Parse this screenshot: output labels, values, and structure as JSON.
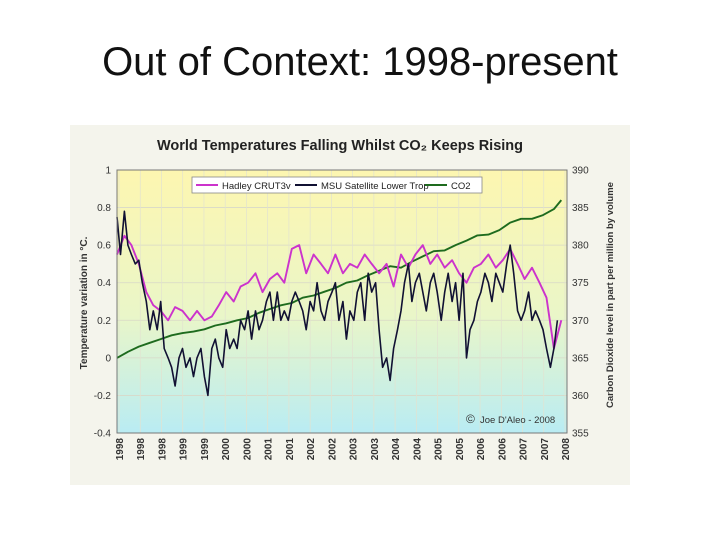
{
  "slide": {
    "title": "Out of Context: 1998-present"
  },
  "chart_data": {
    "type": "line",
    "title": "World Temperatures Falling Whilst CO₂ Keeps Rising",
    "ylabel": "Temperature variation in °C.",
    "ylabel_right": "Carbon Dioxide level in part per million by volume",
    "ylim": [
      -0.4,
      1
    ],
    "ylim_right": [
      355,
      390
    ],
    "yticks": [
      "1",
      "0.8",
      "0.6",
      "0.4",
      "0.2",
      "0",
      "-0.2",
      "-0.4"
    ],
    "yticks_right": [
      "390",
      "385",
      "380",
      "375",
      "370",
      "365",
      "360",
      "355"
    ],
    "xticks": [
      "1998",
      "1998",
      "1998",
      "1999",
      "1999",
      "2000",
      "2000",
      "2001",
      "2001",
      "2002",
      "2002",
      "2003",
      "2003",
      "2004",
      "2004",
      "2005",
      "2005",
      "2006",
      "2006",
      "2007",
      "2007",
      "2008"
    ],
    "x_start": 1998.0,
    "x_end": 2008.3,
    "credit": "Joe D'Aleo - 2008",
    "series": [
      {
        "name": "Hadley CRUT3v",
        "color": "#cc33cc",
        "axis": "left",
        "x": [
          1998.0,
          1998.17,
          1998.33,
          1998.5,
          1998.67,
          1998.83,
          1999.0,
          1999.17,
          1999.33,
          1999.5,
          1999.67,
          1999.83,
          2000.0,
          2000.17,
          2000.33,
          2000.5,
          2000.67,
          2000.83,
          2001.0,
          2001.17,
          2001.33,
          2001.5,
          2001.67,
          2001.83,
          2002.0,
          2002.17,
          2002.33,
          2002.5,
          2002.67,
          2002.83,
          2003.0,
          2003.17,
          2003.33,
          2003.5,
          2003.67,
          2003.83,
          2004.0,
          2004.17,
          2004.33,
          2004.5,
          2004.67,
          2004.83,
          2005.0,
          2005.17,
          2005.33,
          2005.5,
          2005.67,
          2005.83,
          2006.0,
          2006.17,
          2006.33,
          2006.5,
          2006.67,
          2006.83,
          2007.0,
          2007.17,
          2007.33,
          2007.5,
          2007.67,
          2007.83,
          2008.0,
          2008.17
        ],
        "y": [
          0.55,
          0.65,
          0.6,
          0.5,
          0.35,
          0.28,
          0.25,
          0.2,
          0.27,
          0.25,
          0.2,
          0.25,
          0.2,
          0.22,
          0.28,
          0.35,
          0.3,
          0.38,
          0.4,
          0.45,
          0.35,
          0.42,
          0.45,
          0.4,
          0.58,
          0.6,
          0.45,
          0.55,
          0.5,
          0.45,
          0.55,
          0.45,
          0.5,
          0.48,
          0.55,
          0.5,
          0.45,
          0.5,
          0.38,
          0.55,
          0.48,
          0.55,
          0.6,
          0.5,
          0.55,
          0.48,
          0.52,
          0.45,
          0.4,
          0.48,
          0.5,
          0.55,
          0.48,
          0.52,
          0.58,
          0.5,
          0.42,
          0.48,
          0.4,
          0.32,
          0.05,
          0.2
        ]
      },
      {
        "name": "MSU Satellite Lower Trop",
        "color": "#111133",
        "axis": "left",
        "x": [
          1998.0,
          1998.08,
          1998.17,
          1998.25,
          1998.33,
          1998.42,
          1998.5,
          1998.58,
          1998.67,
          1998.75,
          1998.83,
          1998.92,
          1999.0,
          1999.08,
          1999.17,
          1999.25,
          1999.33,
          1999.42,
          1999.5,
          1999.58,
          1999.67,
          1999.75,
          1999.83,
          1999.92,
          2000.0,
          2000.08,
          2000.17,
          2000.25,
          2000.33,
          2000.42,
          2000.5,
          2000.58,
          2000.67,
          2000.75,
          2000.83,
          2000.92,
          2001.0,
          2001.08,
          2001.17,
          2001.25,
          2001.33,
          2001.42,
          2001.5,
          2001.58,
          2001.67,
          2001.75,
          2001.83,
          2001.92,
          2002.0,
          2002.08,
          2002.17,
          2002.25,
          2002.33,
          2002.42,
          2002.5,
          2002.58,
          2002.67,
          2002.75,
          2002.83,
          2002.92,
          2003.0,
          2003.08,
          2003.17,
          2003.25,
          2003.33,
          2003.42,
          2003.5,
          2003.58,
          2003.67,
          2003.75,
          2003.83,
          2003.92,
          2004.0,
          2004.08,
          2004.17,
          2004.25,
          2004.33,
          2004.42,
          2004.5,
          2004.58,
          2004.67,
          2004.75,
          2004.83,
          2004.92,
          2005.0,
          2005.08,
          2005.17,
          2005.25,
          2005.33,
          2005.42,
          2005.5,
          2005.58,
          2005.67,
          2005.75,
          2005.83,
          2005.92,
          2006.0,
          2006.08,
          2006.17,
          2006.25,
          2006.33,
          2006.42,
          2006.5,
          2006.58,
          2006.67,
          2006.75,
          2006.83,
          2006.92,
          2007.0,
          2007.08,
          2007.17,
          2007.25,
          2007.33,
          2007.42,
          2007.5,
          2007.58,
          2007.67,
          2007.75,
          2007.83,
          2007.92,
          2008.0,
          2008.08
        ],
        "y": [
          0.75,
          0.55,
          0.78,
          0.6,
          0.55,
          0.5,
          0.52,
          0.4,
          0.3,
          0.15,
          0.25,
          0.15,
          0.3,
          0.05,
          0.0,
          -0.05,
          -0.15,
          0.0,
          0.05,
          -0.05,
          0.0,
          -0.1,
          0.0,
          0.05,
          -0.1,
          -0.2,
          0.05,
          0.1,
          0.0,
          -0.05,
          0.15,
          0.05,
          0.1,
          0.05,
          0.2,
          0.15,
          0.25,
          0.1,
          0.25,
          0.15,
          0.2,
          0.3,
          0.35,
          0.2,
          0.35,
          0.2,
          0.25,
          0.2,
          0.3,
          0.35,
          0.3,
          0.25,
          0.15,
          0.3,
          0.25,
          0.4,
          0.25,
          0.2,
          0.3,
          0.35,
          0.4,
          0.2,
          0.3,
          0.1,
          0.25,
          0.2,
          0.35,
          0.4,
          0.2,
          0.45,
          0.35,
          0.4,
          0.15,
          -0.05,
          0.0,
          -0.12,
          0.05,
          0.15,
          0.25,
          0.4,
          0.5,
          0.3,
          0.4,
          0.45,
          0.35,
          0.25,
          0.4,
          0.45,
          0.35,
          0.2,
          0.35,
          0.45,
          0.3,
          0.4,
          0.2,
          0.45,
          0.0,
          0.15,
          0.2,
          0.3,
          0.35,
          0.45,
          0.4,
          0.3,
          0.45,
          0.4,
          0.35,
          0.5,
          0.6,
          0.45,
          0.25,
          0.2,
          0.25,
          0.35,
          0.2,
          0.25,
          0.2,
          0.15,
          0.05,
          -0.05,
          0.05,
          0.2
        ]
      },
      {
        "name": "CO2",
        "color": "#1e6b1e",
        "axis": "right",
        "x": [
          1998.0,
          1998.25,
          1998.5,
          1998.75,
          1999.0,
          1999.25,
          1999.5,
          1999.75,
          2000.0,
          2000.25,
          2000.5,
          2000.75,
          2001.0,
          2001.25,
          2001.5,
          2001.75,
          2002.0,
          2002.25,
          2002.5,
          2002.75,
          2003.0,
          2003.25,
          2003.5,
          2003.75,
          2004.0,
          2004.25,
          2004.5,
          2004.75,
          2005.0,
          2005.25,
          2005.5,
          2005.75,
          2006.0,
          2006.25,
          2006.5,
          2006.75,
          2007.0,
          2007.25,
          2007.5,
          2007.75,
          2008.0,
          2008.17
        ],
        "y": [
          365.0,
          365.8,
          366.5,
          367.0,
          367.5,
          368.0,
          368.3,
          368.5,
          368.8,
          369.3,
          369.6,
          370.0,
          370.3,
          371.0,
          371.5,
          372.0,
          372.3,
          373.0,
          373.3,
          373.8,
          374.3,
          375.0,
          375.3,
          376.0,
          376.6,
          377.2,
          377.0,
          377.8,
          378.5,
          379.2,
          379.3,
          380.0,
          380.6,
          381.3,
          381.4,
          382.0,
          383.0,
          383.5,
          383.5,
          384.0,
          384.8,
          386.0
        ]
      }
    ]
  }
}
